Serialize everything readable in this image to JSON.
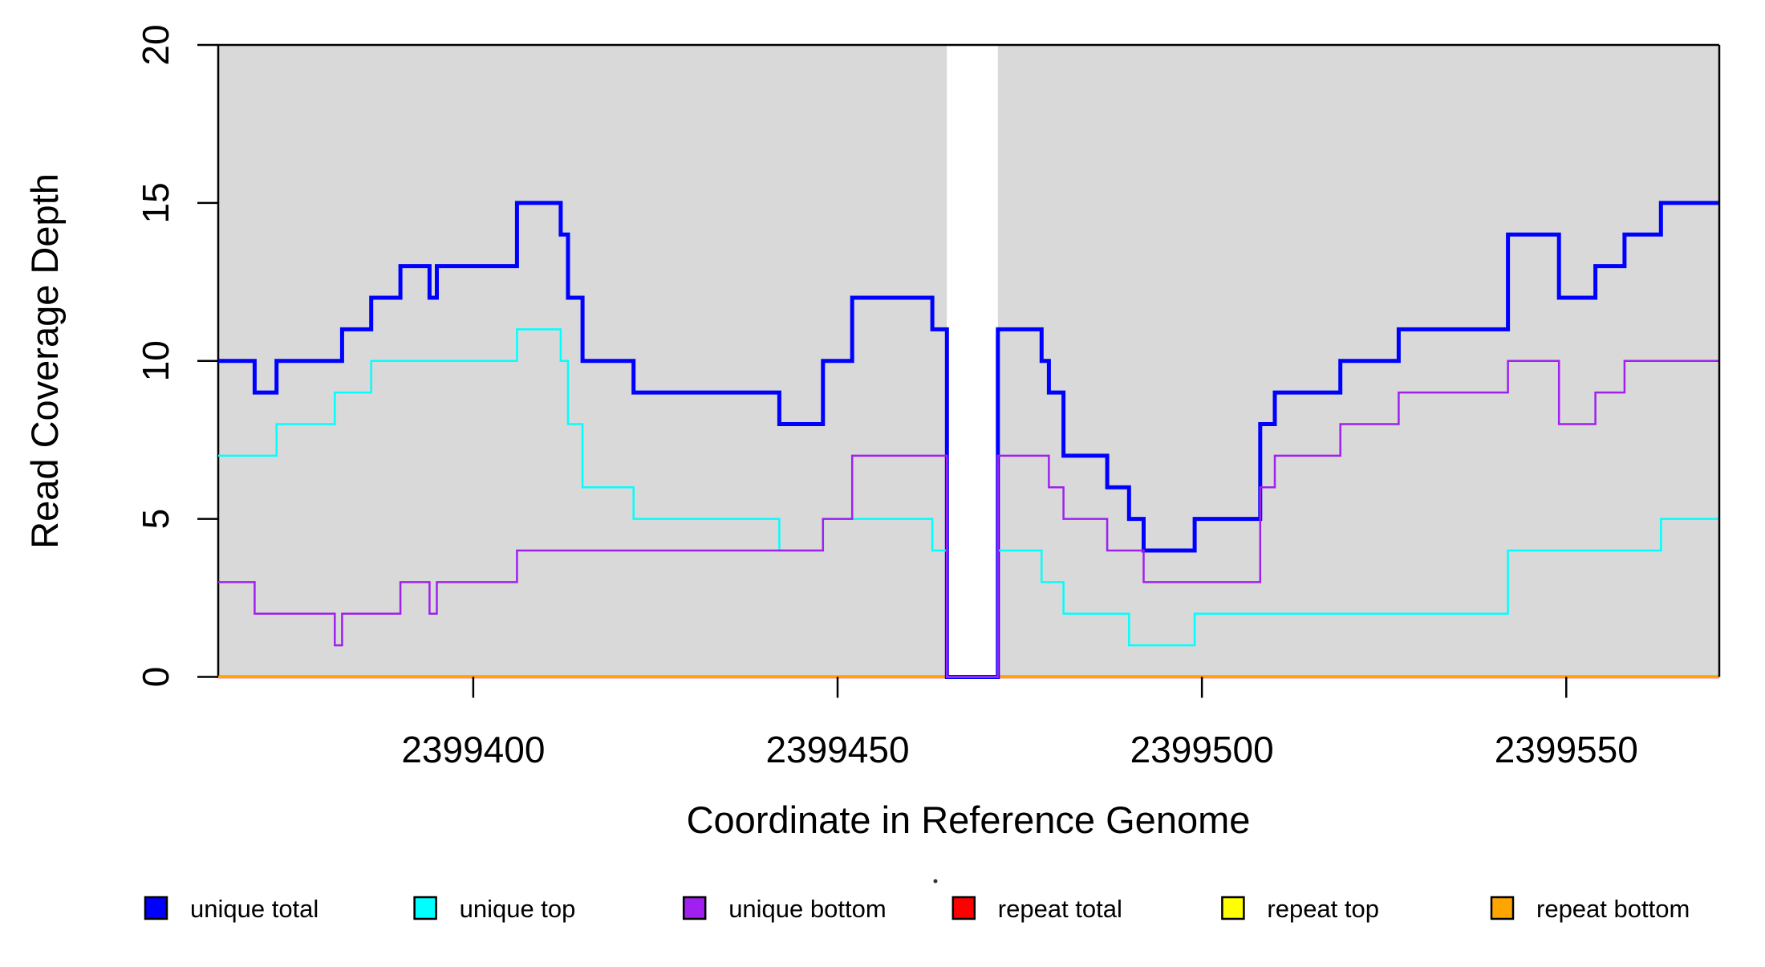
{
  "figure": {
    "background": "#ffffff",
    "plot_background": "#d9d9d9"
  },
  "chart_data": {
    "type": "line",
    "subtype": "step",
    "title": "",
    "xlabel": "Coordinate in Reference Genome",
    "ylabel": "Read Coverage Depth",
    "xlim": [
      2399365,
      2399571
    ],
    "ylim": [
      0,
      20
    ],
    "x_ticks": [
      2399400,
      2399450,
      2399500,
      2399550
    ],
    "x_tick_labels": [
      "2399400",
      "2399450",
      "2399500",
      "2399550"
    ],
    "y_ticks": [
      0,
      5,
      10,
      15,
      20
    ],
    "y_tick_labels": [
      "0",
      "5",
      "10",
      "15",
      "20"
    ],
    "grid": false,
    "legend_position": "bottom",
    "plot_bg": "#d9d9d9",
    "gap_region": [
      2399465,
      2399472
    ],
    "shaded_regions": [
      [
        2399365,
        2399465
      ],
      [
        2399472,
        2399571
      ]
    ],
    "draw_order": [
      3,
      4,
      5,
      0,
      1,
      2
    ],
    "series": [
      {
        "name": "unique total",
        "color": "#0000ff",
        "stroke_width": 5,
        "breakpoints": [
          [
            2399365,
            10
          ],
          [
            2399370,
            9
          ],
          [
            2399373,
            10
          ],
          [
            2399382,
            11
          ],
          [
            2399386,
            12
          ],
          [
            2399390,
            13
          ],
          [
            2399394,
            12
          ],
          [
            2399395,
            13
          ],
          [
            2399406,
            15
          ],
          [
            2399412,
            14
          ],
          [
            2399413,
            12
          ],
          [
            2399415,
            10
          ],
          [
            2399422,
            9
          ],
          [
            2399442,
            8
          ],
          [
            2399448,
            10
          ],
          [
            2399452,
            12
          ],
          [
            2399463,
            11
          ],
          [
            2399465,
            0
          ],
          [
            2399472,
            11
          ],
          [
            2399478,
            10
          ],
          [
            2399479,
            9
          ],
          [
            2399481,
            7
          ],
          [
            2399487,
            6
          ],
          [
            2399490,
            5
          ],
          [
            2399492,
            4
          ],
          [
            2399499,
            5
          ],
          [
            2399508,
            8
          ],
          [
            2399510,
            9
          ],
          [
            2399519,
            10
          ],
          [
            2399527,
            11
          ],
          [
            2399542,
            14
          ],
          [
            2399549,
            12
          ],
          [
            2399554,
            13
          ],
          [
            2399558,
            14
          ],
          [
            2399563,
            15
          ]
        ]
      },
      {
        "name": "unique top",
        "color": "#00ffff",
        "stroke_width": 2.5,
        "breakpoints": [
          [
            2399365,
            7
          ],
          [
            2399373,
            8
          ],
          [
            2399381,
            9
          ],
          [
            2399386,
            10
          ],
          [
            2399406,
            11
          ],
          [
            2399412,
            10
          ],
          [
            2399413,
            8
          ],
          [
            2399415,
            6
          ],
          [
            2399422,
            5
          ],
          [
            2399442,
            4
          ],
          [
            2399448,
            5
          ],
          [
            2399463,
            4
          ],
          [
            2399465,
            0
          ],
          [
            2399472,
            4
          ],
          [
            2399478,
            3
          ],
          [
            2399481,
            2
          ],
          [
            2399490,
            1
          ],
          [
            2399499,
            2
          ],
          [
            2399542,
            4
          ],
          [
            2399563,
            5
          ]
        ]
      },
      {
        "name": "unique bottom",
        "color": "#a020f0",
        "stroke_width": 2.5,
        "breakpoints": [
          [
            2399365,
            3
          ],
          [
            2399370,
            2
          ],
          [
            2399381,
            1
          ],
          [
            2399382,
            2
          ],
          [
            2399390,
            3
          ],
          [
            2399394,
            2
          ],
          [
            2399395,
            3
          ],
          [
            2399406,
            4
          ],
          [
            2399448,
            5
          ],
          [
            2399452,
            7
          ],
          [
            2399465,
            0
          ],
          [
            2399472,
            7
          ],
          [
            2399479,
            6
          ],
          [
            2399481,
            5
          ],
          [
            2399487,
            4
          ],
          [
            2399492,
            3
          ],
          [
            2399508,
            6
          ],
          [
            2399510,
            7
          ],
          [
            2399519,
            8
          ],
          [
            2399527,
            9
          ],
          [
            2399542,
            10
          ],
          [
            2399549,
            8
          ],
          [
            2399554,
            9
          ],
          [
            2399558,
            10
          ]
        ]
      },
      {
        "name": "repeat total",
        "color": "#ff0000",
        "stroke_width": 3.5,
        "breakpoints": [
          [
            2399365,
            0
          ]
        ]
      },
      {
        "name": "repeat top",
        "color": "#ffff00",
        "stroke_width": 2.5,
        "breakpoints": [
          [
            2399365,
            0
          ]
        ]
      },
      {
        "name": "repeat bottom",
        "color": "#ffa500",
        "stroke_width": 3,
        "breakpoints": [
          [
            2399365,
            0
          ]
        ]
      }
    ],
    "legend": [
      {
        "label": "unique total",
        "color": "#0000ff"
      },
      {
        "label": "unique top",
        "color": "#00ffff"
      },
      {
        "label": "unique bottom",
        "color": "#a020f0"
      },
      {
        "label": "repeat total",
        "color": "#ff0000"
      },
      {
        "label": "repeat top",
        "color": "#ffff00"
      },
      {
        "label": "repeat bottom",
        "color": "#ffa500"
      }
    ]
  }
}
